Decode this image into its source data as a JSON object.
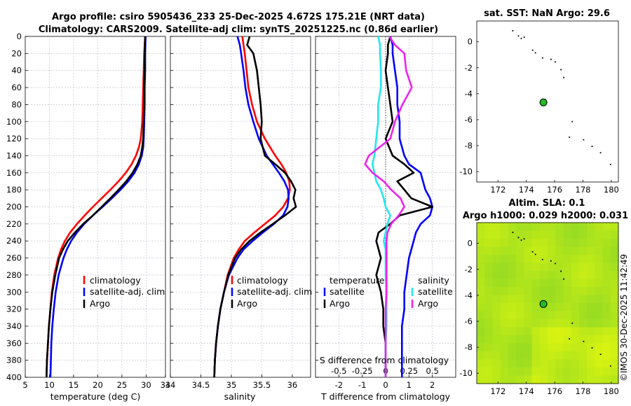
{
  "header": {
    "title_line1": "Argo profile: csiro 5905436_233 25-Dec-2025 4.672S 175.21E (NRT data)",
    "title_line2": "Climatology: CARS2009. Satellite-adj clim: synTS_20251225.nc (0.86d earlier)"
  },
  "footer": {
    "imos_stamp": "©IMOS 30-Dec-2025 11:42:49"
  },
  "colors": {
    "red": "#ff0000",
    "blue": "#0000ff",
    "black": "#000000",
    "cyan": "#22e6ee",
    "magenta": "#ee22ee",
    "map_bg": "#b6ea18",
    "map_bg_dark": "#c8e614",
    "float": "#22bb22"
  },
  "chart_data": [
    {
      "id": "temperature",
      "type": "line",
      "xlabel": "temperature (deg C)",
      "ylim": [
        400,
        0
      ],
      "xlim": [
        5,
        34
      ],
      "xticks": [
        5,
        10,
        15,
        20,
        25,
        30,
        34
      ],
      "yticks": [
        0,
        20,
        40,
        60,
        80,
        100,
        120,
        140,
        160,
        180,
        200,
        220,
        240,
        260,
        280,
        300,
        320,
        340,
        360,
        380,
        400
      ],
      "depth": [
        0,
        20,
        40,
        60,
        80,
        100,
        120,
        130,
        140,
        150,
        160,
        170,
        180,
        190,
        200,
        210,
        220,
        230,
        240,
        250,
        260,
        280,
        300,
        320,
        340,
        360,
        380,
        400
      ],
      "series": [
        {
          "name": "climatology",
          "color": "red",
          "values": [
            29.8,
            29.6,
            29.5,
            29.4,
            29.3,
            29.2,
            28.9,
            28.5,
            27.9,
            27.0,
            25.8,
            24.3,
            22.6,
            20.8,
            19.0,
            17.3,
            15.7,
            14.3,
            13.2,
            12.4,
            11.8,
            11.0,
            10.5,
            10.2,
            9.9,
            9.7,
            9.5,
            9.4
          ]
        },
        {
          "name": "satellite-adj. clim",
          "color": "blue",
          "values": [
            29.9,
            29.8,
            29.8,
            29.7,
            29.7,
            29.6,
            29.5,
            29.4,
            29.1,
            28.5,
            27.6,
            26.3,
            24.7,
            22.9,
            21.0,
            19.0,
            17.2,
            15.7,
            14.5,
            13.6,
            12.9,
            11.9,
            11.3,
            10.9,
            10.6,
            10.4,
            10.3,
            10.2
          ]
        },
        {
          "name": "Argo",
          "color": "black",
          "values": [
            29.8,
            29.7,
            29.7,
            29.6,
            29.6,
            29.5,
            29.4,
            29.2,
            28.9,
            28.2,
            27.2,
            25.9,
            24.3,
            22.6,
            20.8,
            19.0,
            17.0,
            15.3,
            13.8,
            12.8,
            12.0,
            11.2,
            10.6,
            10.2,
            9.9,
            9.7,
            9.5,
            9.4
          ]
        }
      ],
      "legend": [
        "climatology",
        "satellite-adj. clim",
        "Argo"
      ]
    },
    {
      "id": "salinity",
      "type": "line",
      "xlabel": "salinity",
      "ylim": [
        400,
        0
      ],
      "xlim": [
        34,
        36.3
      ],
      "xticks": [
        34,
        34.5,
        35,
        35.5,
        36
      ],
      "depth": [
        0,
        10,
        20,
        40,
        60,
        80,
        100,
        120,
        140,
        150,
        160,
        170,
        180,
        190,
        200,
        210,
        220,
        230,
        240,
        250,
        260,
        280,
        300,
        320,
        340,
        360,
        380,
        400
      ],
      "series": [
        {
          "name": "climatology",
          "color": "red",
          "values": [
            35.18,
            35.2,
            35.22,
            35.25,
            35.28,
            35.34,
            35.42,
            35.55,
            35.72,
            35.82,
            35.9,
            35.95,
            35.96,
            35.93,
            35.85,
            35.72,
            35.55,
            35.38,
            35.22,
            35.12,
            35.04,
            34.94,
            34.88,
            34.82,
            34.78,
            34.75,
            34.73,
            34.72
          ]
        },
        {
          "name": "satellite-adj. clim",
          "color": "blue",
          "values": [
            35.1,
            35.14,
            35.16,
            35.2,
            35.23,
            35.28,
            35.36,
            35.45,
            35.58,
            35.68,
            35.78,
            35.87,
            35.93,
            35.94,
            35.92,
            35.85,
            35.7,
            35.52,
            35.35,
            35.2,
            35.1,
            34.96,
            34.88,
            34.82,
            34.78,
            34.75,
            34.73,
            34.72
          ]
        },
        {
          "name": "Argo",
          "color": "black",
          "values": [
            35.3,
            35.26,
            35.36,
            35.42,
            35.45,
            35.48,
            35.5,
            35.48,
            35.55,
            35.72,
            35.88,
            35.98,
            36.05,
            36.02,
            36.06,
            35.88,
            35.68,
            35.48,
            35.3,
            35.16,
            35.06,
            34.95,
            34.88,
            34.82,
            34.78,
            34.75,
            34.73,
            34.72
          ]
        }
      ],
      "legend": [
        "climatology",
        "satellite-adj. clim",
        "Argo"
      ]
    },
    {
      "id": "difference",
      "type": "line",
      "xlabel": "T difference from climatology",
      "top_axis_label": "S difference from climatology",
      "ylim": [
        400,
        0
      ],
      "xlim": [
        -3,
        3
      ],
      "xticks": [
        -2,
        -1,
        0,
        1,
        2
      ],
      "s_ticks": [
        -0.5,
        -0.25,
        0,
        0.25,
        0.5
      ],
      "s_tick_labels": [
        "-0.5",
        "-0.25",
        "0",
        "0.25",
        "0.5"
      ],
      "depth": [
        0,
        10,
        20,
        40,
        60,
        80,
        100,
        120,
        140,
        150,
        160,
        170,
        180,
        190,
        200,
        210,
        220,
        230,
        240,
        250,
        260,
        280,
        300,
        320,
        340,
        360,
        380,
        400
      ],
      "series": [
        {
          "name": "temperature satellite",
          "color": "blue",
          "values": [
            0.2,
            0.3,
            0.3,
            0.4,
            0.5,
            0.5,
            0.6,
            0.6,
            0.8,
            1.0,
            1.5,
            1.6,
            1.7,
            1.9,
            2.0,
            1.9,
            1.5,
            1.3,
            1.2,
            1.1,
            1.0,
            0.9,
            0.8,
            0.8,
            0.7,
            0.7,
            0.7,
            0.7
          ]
        },
        {
          "name": "temperature Argo",
          "color": "black",
          "values": [
            0.2,
            0.1,
            0.1,
            0.0,
            0.1,
            0.2,
            0.3,
            0.0,
            0.3,
            0.8,
            1.2,
            0.5,
            0.8,
            1.1,
            2.0,
            0.6,
            0.2,
            -0.3,
            -0.4,
            -0.3,
            -0.2,
            -0.4,
            -0.2,
            -0.1,
            -0.1,
            0.0,
            0.0,
            0.0
          ]
        },
        {
          "name": "salinity satellite",
          "color": "cyan",
          "values": [
            -0.08,
            -0.06,
            -0.06,
            -0.05,
            -0.05,
            -0.08,
            -0.08,
            -0.1,
            -0.12,
            -0.14,
            -0.12,
            -0.1,
            -0.05,
            -0.02,
            0.0,
            0.05,
            0.02,
            0.0,
            -0.02,
            0.0,
            0.0,
            0.0,
            0.01,
            0.01,
            0.01,
            0.0,
            0.0,
            0.0
          ]
        },
        {
          "name": "salinity Argo",
          "color": "magenta",
          "values": [
            0.04,
            0.1,
            0.2,
            0.22,
            0.28,
            0.18,
            0.1,
            0.05,
            -0.18,
            -0.22,
            -0.14,
            -0.02,
            0.06,
            0.16,
            0.2,
            0.14,
            0.06,
            0.02,
            0.01,
            0.01,
            0.01,
            0.01,
            0.01,
            0.0,
            0.0,
            0.0,
            0.0,
            0.0
          ]
        }
      ],
      "legend_temperature": {
        "header": "temperature",
        "items": [
          "satellite",
          "Argo"
        ]
      },
      "legend_salinity": {
        "header": "salinity",
        "items": [
          "satellite",
          "Argo"
        ]
      }
    },
    {
      "id": "sst_map",
      "type": "scatter",
      "title": "sat. SST: NaN Argo: 29.6",
      "xlim": [
        170.5,
        180.5
      ],
      "ylim": [
        -10.8,
        1.6
      ],
      "xticks": [
        172,
        174,
        176,
        178,
        180
      ],
      "yticks": [
        0,
        -2,
        -4,
        -6,
        -8,
        -10
      ],
      "float_position": {
        "lon": 175.21,
        "lat": -4.672
      },
      "islands": [
        [
          173.0,
          0.9
        ],
        [
          173.4,
          0.5
        ],
        [
          173.6,
          0.3
        ],
        [
          173.8,
          0.4
        ],
        [
          174.4,
          -0.6
        ],
        [
          174.6,
          -0.8
        ],
        [
          175.1,
          -1.2
        ],
        [
          175.7,
          -1.3
        ],
        [
          176.0,
          -1.5
        ],
        [
          176.4,
          -2.1
        ],
        [
          176.6,
          -2.7
        ],
        [
          177.2,
          -6.1
        ],
        [
          177.0,
          -7.3
        ],
        [
          178.6,
          -8.0
        ],
        [
          178.0,
          -7.5
        ],
        [
          179.2,
          -8.5
        ],
        [
          179.9,
          -9.4
        ]
      ]
    },
    {
      "id": "sla_map",
      "type": "heatmap",
      "title_line1": "Altim. SLA: 0.1",
      "title_line2": "Argo h1000: 0.029 h2000: 0.031",
      "xlim": [
        170.5,
        180.5
      ],
      "ylim": [
        -10.8,
        1.6
      ],
      "xticks": [
        172,
        174,
        176,
        178,
        180
      ],
      "yticks": [
        0,
        -2,
        -4,
        -6,
        -8,
        -10
      ],
      "float_position": {
        "lon": 175.21,
        "lat": -4.672
      },
      "islands": [
        [
          173.0,
          0.9
        ],
        [
          173.4,
          0.5
        ],
        [
          173.6,
          0.3
        ],
        [
          173.8,
          0.4
        ],
        [
          174.4,
          -0.6
        ],
        [
          174.6,
          -0.8
        ],
        [
          175.1,
          -1.2
        ],
        [
          175.7,
          -1.3
        ],
        [
          176.0,
          -1.5
        ],
        [
          176.4,
          -2.1
        ],
        [
          176.6,
          -2.7
        ],
        [
          177.2,
          -6.1
        ],
        [
          177.0,
          -7.3
        ],
        [
          178.6,
          -8.0
        ],
        [
          178.0,
          -7.5
        ],
        [
          179.2,
          -8.5
        ],
        [
          179.9,
          -9.4
        ]
      ]
    }
  ]
}
